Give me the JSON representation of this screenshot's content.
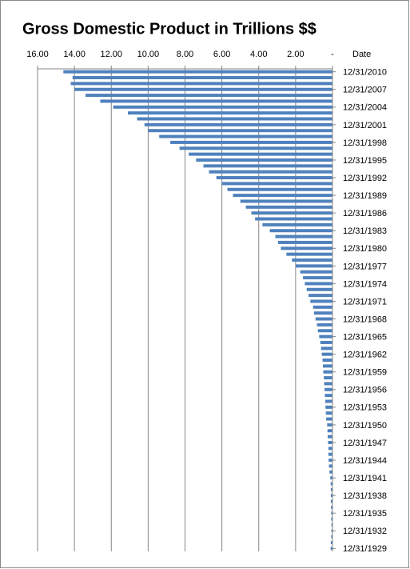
{
  "chart_data": {
    "type": "bar",
    "orientation": "horizontal",
    "title": "Gross Domestic Product in Trillions $$",
    "y_label": "Date",
    "categories": [
      "12/31/2010",
      null,
      null,
      "12/31/2007",
      null,
      null,
      "12/31/2004",
      null,
      null,
      "12/31/2001",
      null,
      null,
      "12/31/1998",
      null,
      null,
      "12/31/1995",
      null,
      null,
      "12/31/1992",
      null,
      null,
      "12/31/1989",
      null,
      null,
      "12/31/1986",
      null,
      null,
      "12/31/1983",
      null,
      null,
      "12/31/1980",
      null,
      null,
      "12/31/1977",
      null,
      null,
      "12/31/1974",
      null,
      null,
      "12/31/1971",
      null,
      null,
      "12/31/1968",
      null,
      null,
      "12/31/1965",
      null,
      null,
      "12/31/1962",
      null,
      null,
      "12/31/1959",
      null,
      null,
      "12/31/1956",
      null,
      null,
      "12/31/1953",
      null,
      null,
      "12/31/1950",
      null,
      null,
      "12/31/1947",
      null,
      null,
      "12/31/1944",
      null,
      null,
      "12/31/1941",
      null,
      null,
      "12/31/1938",
      null,
      null,
      "12/31/1935",
      null,
      null,
      "12/31/1932",
      null,
      null,
      "12/31/1929"
    ],
    "values": [
      14.6,
      14.1,
      14.2,
      14.0,
      13.4,
      12.6,
      11.9,
      11.1,
      10.6,
      10.2,
      10.0,
      9.4,
      8.8,
      8.3,
      7.8,
      7.4,
      7.0,
      6.7,
      6.3,
      6.0,
      5.7,
      5.4,
      5.0,
      4.7,
      4.4,
      4.2,
      3.8,
      3.4,
      3.1,
      2.95,
      2.8,
      2.5,
      2.2,
      2.0,
      1.75,
      1.6,
      1.5,
      1.4,
      1.3,
      1.2,
      1.05,
      1.0,
      0.92,
      0.84,
      0.79,
      0.72,
      0.66,
      0.62,
      0.58,
      0.54,
      0.52,
      0.5,
      0.47,
      0.45,
      0.43,
      0.41,
      0.39,
      0.38,
      0.36,
      0.34,
      0.29,
      0.27,
      0.26,
      0.24,
      0.22,
      0.22,
      0.21,
      0.19,
      0.16,
      0.12,
      0.1,
      0.09,
      0.09,
      0.09,
      0.08,
      0.07,
      0.07,
      0.06,
      0.06,
      0.07,
      0.09,
      0.1
    ],
    "color": "#4f81bd",
    "xlim": [
      0,
      16
    ],
    "x_reversed": true,
    "x_axis_position": "top",
    "xticks": [
      {
        "value": 16,
        "label": "16.00"
      },
      {
        "value": 14,
        "label": "14.00"
      },
      {
        "value": 12,
        "label": "12.00"
      },
      {
        "value": 10,
        "label": "10.00"
      },
      {
        "value": 8,
        "label": "8.00"
      },
      {
        "value": 6,
        "label": "6.00"
      },
      {
        "value": 4,
        "label": "4.00"
      },
      {
        "value": 2,
        "label": "2.00"
      },
      {
        "value": 0,
        "label": "-"
      }
    ],
    "grid": true
  }
}
